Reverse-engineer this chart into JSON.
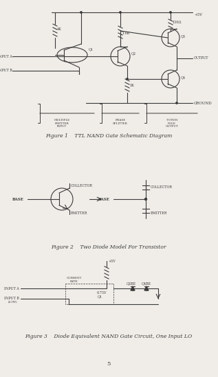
{
  "bg_color": "#f0ede8",
  "line_color": "#3a3a3a",
  "text_color": "#3a3a3a",
  "fig1_caption": "Figure 1    TTL NAND Gate Schematic Diagram",
  "fig2_caption": "Figure 2    Two Diode Model For Transistor",
  "fig3_caption": "Figure 3    Diode Equivalent NAND Gate Circuit, One Input LO",
  "page_num": "5"
}
